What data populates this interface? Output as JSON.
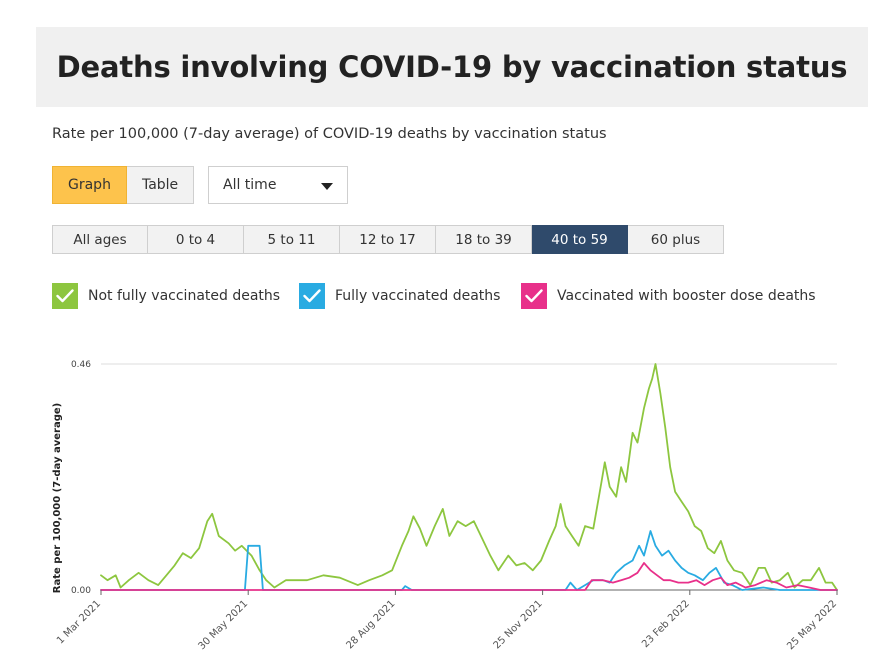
{
  "header": {
    "title": "Deaths involving COVID-19 by vaccination status"
  },
  "subtitle": "Rate per 100,000 (7-day average) of COVID-19 deaths by vaccination status",
  "view_toggle": [
    {
      "label": "Graph",
      "active": true
    },
    {
      "label": "Table",
      "active": false
    }
  ],
  "time_select": {
    "value": "All time"
  },
  "age_tabs": [
    {
      "label": "All ages",
      "active": false
    },
    {
      "label": "0 to 4",
      "active": false
    },
    {
      "label": "5 to 11",
      "active": false
    },
    {
      "label": "12 to 17",
      "active": false
    },
    {
      "label": "18 to 39",
      "active": false
    },
    {
      "label": "40 to 59",
      "active": true
    },
    {
      "label": "60 plus",
      "active": false
    }
  ],
  "legend": [
    {
      "label": "Not fully vaccinated deaths",
      "color": "#8dc63f",
      "icon": "check-icon"
    },
    {
      "label": "Fully vaccinated deaths",
      "color": "#29abe2",
      "icon": "check-icon"
    },
    {
      "label": "Vaccinated with booster dose deaths",
      "color": "#e8308a",
      "icon": "check-icon"
    }
  ],
  "chart_data": {
    "type": "line",
    "title": "",
    "xlabel": "",
    "ylabel": "Rate per 100,000 (7-day average)",
    "ylim": [
      0,
      0.46
    ],
    "y_ticks": [
      "0.00",
      "0.46"
    ],
    "x_range": [
      "2021-03-01",
      "2022-05-25"
    ],
    "x_ticks": [
      "1 Mar 2021",
      "30 May 2021",
      "28 Aug 2021",
      "25 Nov 2021",
      "23 Feb 2022",
      "25 May 2022"
    ],
    "grid": "horizontal",
    "series": [
      {
        "name": "Not fully vaccinated deaths",
        "color": "#8dc63f",
        "points": [
          [
            "2021-03-01",
            0.03
          ],
          [
            "2021-03-05",
            0.02
          ],
          [
            "2021-03-10",
            0.03
          ],
          [
            "2021-03-13",
            0.005
          ],
          [
            "2021-03-18",
            0.02
          ],
          [
            "2021-03-24",
            0.035
          ],
          [
            "2021-03-30",
            0.02
          ],
          [
            "2021-04-05",
            0.01
          ],
          [
            "2021-04-10",
            0.03
          ],
          [
            "2021-04-15",
            0.05
          ],
          [
            "2021-04-20",
            0.075
          ],
          [
            "2021-04-25",
            0.065
          ],
          [
            "2021-04-30",
            0.085
          ],
          [
            "2021-05-05",
            0.14
          ],
          [
            "2021-05-08",
            0.155
          ],
          [
            "2021-05-12",
            0.11
          ],
          [
            "2021-05-18",
            0.095
          ],
          [
            "2021-05-22",
            0.08
          ],
          [
            "2021-05-26",
            0.09
          ],
          [
            "2021-06-01",
            0.07
          ],
          [
            "2021-06-06",
            0.04
          ],
          [
            "2021-06-10",
            0.02
          ],
          [
            "2021-06-15",
            0.005
          ],
          [
            "2021-06-22",
            0.02
          ],
          [
            "2021-07-05",
            0.02
          ],
          [
            "2021-07-15",
            0.03
          ],
          [
            "2021-07-25",
            0.025
          ],
          [
            "2021-08-05",
            0.01
          ],
          [
            "2021-08-12",
            0.02
          ],
          [
            "2021-08-20",
            0.03
          ],
          [
            "2021-08-26",
            0.04
          ],
          [
            "2021-09-01",
            0.09
          ],
          [
            "2021-09-05",
            0.12
          ],
          [
            "2021-09-08",
            0.15
          ],
          [
            "2021-09-12",
            0.125
          ],
          [
            "2021-09-16",
            0.09
          ],
          [
            "2021-09-21",
            0.13
          ],
          [
            "2021-09-26",
            0.165
          ],
          [
            "2021-09-30",
            0.11
          ],
          [
            "2021-10-05",
            0.14
          ],
          [
            "2021-10-10",
            0.13
          ],
          [
            "2021-10-15",
            0.14
          ],
          [
            "2021-10-20",
            0.105
          ],
          [
            "2021-10-25",
            0.07
          ],
          [
            "2021-10-30",
            0.04
          ],
          [
            "2021-11-05",
            0.07
          ],
          [
            "2021-11-10",
            0.05
          ],
          [
            "2021-11-15",
            0.055
          ],
          [
            "2021-11-20",
            0.04
          ],
          [
            "2021-11-25",
            0.06
          ],
          [
            "2021-11-30",
            0.1
          ],
          [
            "2021-12-04",
            0.13
          ],
          [
            "2021-12-07",
            0.175
          ],
          [
            "2021-12-10",
            0.13
          ],
          [
            "2021-12-14",
            0.11
          ],
          [
            "2021-12-18",
            0.09
          ],
          [
            "2021-12-22",
            0.13
          ],
          [
            "2021-12-27",
            0.125
          ],
          [
            "2022-01-01",
            0.22
          ],
          [
            "2022-01-03",
            0.26
          ],
          [
            "2022-01-06",
            0.21
          ],
          [
            "2022-01-10",
            0.19
          ],
          [
            "2022-01-13",
            0.25
          ],
          [
            "2022-01-16",
            0.22
          ],
          [
            "2022-01-20",
            0.32
          ],
          [
            "2022-01-23",
            0.3
          ],
          [
            "2022-01-27",
            0.37
          ],
          [
            "2022-01-30",
            0.41
          ],
          [
            "2022-02-01",
            0.43
          ],
          [
            "2022-02-03",
            0.46
          ],
          [
            "2022-02-06",
            0.4
          ],
          [
            "2022-02-09",
            0.33
          ],
          [
            "2022-02-12",
            0.25
          ],
          [
            "2022-02-15",
            0.2
          ],
          [
            "2022-02-19",
            0.18
          ],
          [
            "2022-02-23",
            0.16
          ],
          [
            "2022-02-27",
            0.13
          ],
          [
            "2022-03-03",
            0.12
          ],
          [
            "2022-03-07",
            0.085
          ],
          [
            "2022-03-11",
            0.075
          ],
          [
            "2022-03-15",
            0.1
          ],
          [
            "2022-03-19",
            0.06
          ],
          [
            "2022-03-23",
            0.04
          ],
          [
            "2022-03-28",
            0.035
          ],
          [
            "2022-04-02",
            0.01
          ],
          [
            "2022-04-07",
            0.045
          ],
          [
            "2022-04-11",
            0.045
          ],
          [
            "2022-04-15",
            0.015
          ],
          [
            "2022-04-20",
            0.02
          ],
          [
            "2022-04-25",
            0.035
          ],
          [
            "2022-04-29",
            0.005
          ],
          [
            "2022-05-04",
            0.02
          ],
          [
            "2022-05-09",
            0.02
          ],
          [
            "2022-05-14",
            0.045
          ],
          [
            "2022-05-18",
            0.015
          ],
          [
            "2022-05-22",
            0.015
          ],
          [
            "2022-05-25",
            0.0
          ]
        ]
      },
      {
        "name": "Fully vaccinated deaths",
        "color": "#29abe2",
        "points": [
          [
            "2021-03-01",
            0.0
          ],
          [
            "2021-05-28",
            0.0
          ],
          [
            "2021-05-30",
            0.09
          ],
          [
            "2021-06-06",
            0.09
          ],
          [
            "2021-06-08",
            0.0
          ],
          [
            "2021-09-01",
            0.0
          ],
          [
            "2021-09-03",
            0.008
          ],
          [
            "2021-09-07",
            0.0
          ],
          [
            "2021-12-10",
            0.0
          ],
          [
            "2021-12-13",
            0.015
          ],
          [
            "2021-12-17",
            0.0
          ],
          [
            "2021-12-22",
            0.01
          ],
          [
            "2021-12-27",
            0.02
          ],
          [
            "2022-01-02",
            0.02
          ],
          [
            "2022-01-06",
            0.015
          ],
          [
            "2022-01-10",
            0.035
          ],
          [
            "2022-01-15",
            0.05
          ],
          [
            "2022-01-20",
            0.06
          ],
          [
            "2022-01-24",
            0.09
          ],
          [
            "2022-01-27",
            0.07
          ],
          [
            "2022-01-31",
            0.12
          ],
          [
            "2022-02-03",
            0.09
          ],
          [
            "2022-02-07",
            0.07
          ],
          [
            "2022-02-11",
            0.08
          ],
          [
            "2022-02-15",
            0.06
          ],
          [
            "2022-02-19",
            0.045
          ],
          [
            "2022-02-23",
            0.035
          ],
          [
            "2022-02-27",
            0.03
          ],
          [
            "2022-03-04",
            0.02
          ],
          [
            "2022-03-08",
            0.035
          ],
          [
            "2022-03-12",
            0.045
          ],
          [
            "2022-03-17",
            0.015
          ],
          [
            "2022-03-22",
            0.01
          ],
          [
            "2022-03-28",
            0.0
          ],
          [
            "2022-04-10",
            0.005
          ],
          [
            "2022-04-20",
            0.0
          ],
          [
            "2022-05-25",
            0.0
          ]
        ]
      },
      {
        "name": "Vaccinated with booster dose deaths",
        "color": "#e8308a",
        "points": [
          [
            "2021-03-01",
            0.0
          ],
          [
            "2021-12-22",
            0.0
          ],
          [
            "2021-12-26",
            0.02
          ],
          [
            "2022-01-02",
            0.02
          ],
          [
            "2022-01-08",
            0.015
          ],
          [
            "2022-01-13",
            0.02
          ],
          [
            "2022-01-18",
            0.025
          ],
          [
            "2022-01-23",
            0.035
          ],
          [
            "2022-01-27",
            0.055
          ],
          [
            "2022-01-31",
            0.04
          ],
          [
            "2022-02-04",
            0.03
          ],
          [
            "2022-02-08",
            0.02
          ],
          [
            "2022-02-12",
            0.02
          ],
          [
            "2022-02-17",
            0.015
          ],
          [
            "2022-02-23",
            0.015
          ],
          [
            "2022-02-28",
            0.02
          ],
          [
            "2022-03-05",
            0.01
          ],
          [
            "2022-03-10",
            0.02
          ],
          [
            "2022-03-15",
            0.025
          ],
          [
            "2022-03-19",
            0.01
          ],
          [
            "2022-03-24",
            0.015
          ],
          [
            "2022-03-30",
            0.005
          ],
          [
            "2022-04-05",
            0.01
          ],
          [
            "2022-04-12",
            0.02
          ],
          [
            "2022-04-18",
            0.015
          ],
          [
            "2022-04-24",
            0.005
          ],
          [
            "2022-05-01",
            0.01
          ],
          [
            "2022-05-08",
            0.005
          ],
          [
            "2022-05-15",
            0.0
          ],
          [
            "2022-05-25",
            0.0
          ]
        ]
      }
    ]
  }
}
